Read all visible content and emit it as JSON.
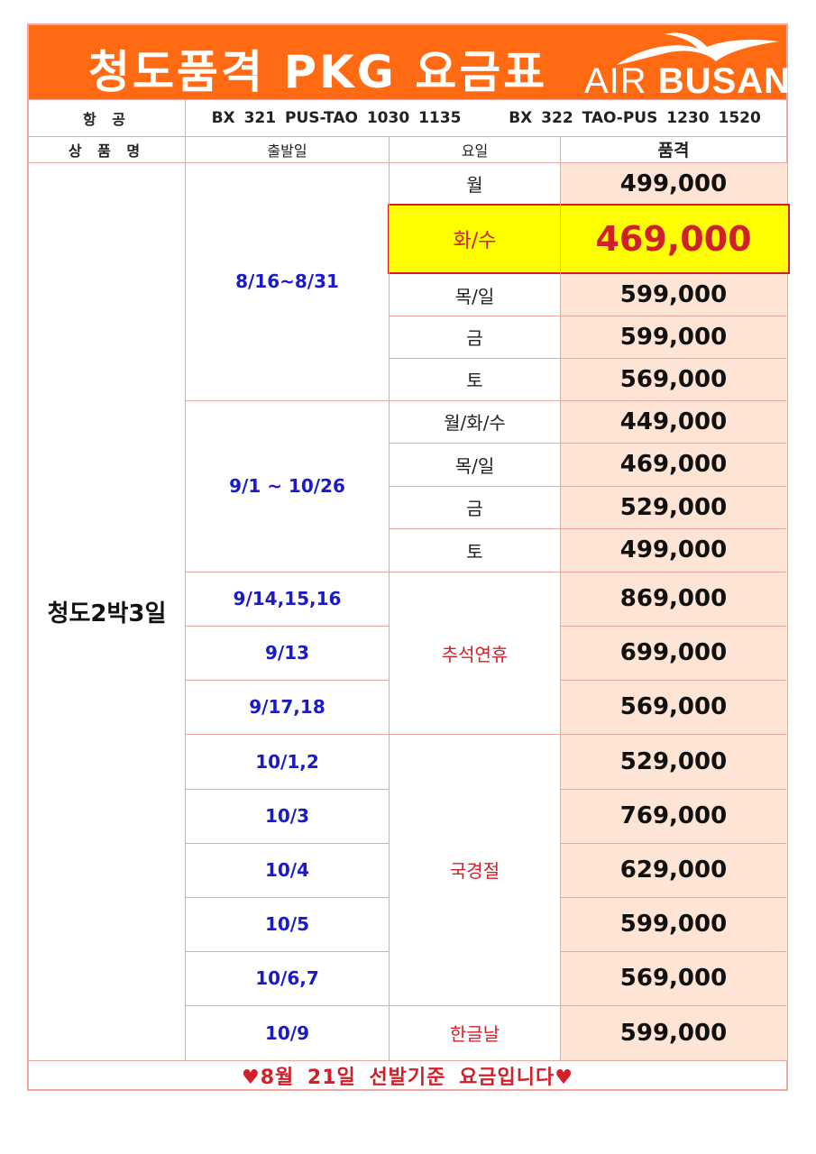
{
  "title": "청도품격 PKG 요금표",
  "logo": {
    "text_light": "AIR",
    "text_bold": "BUSAN"
  },
  "flight_row": {
    "label": "항 공",
    "outbound": "BX 321  PUS-TAO 1030 1135",
    "inbound": "BX 322  TAO-PUS  1230 1520"
  },
  "columns": {
    "product": "상 품 명",
    "departure": "출발일",
    "weekday": "요일",
    "price": "품격"
  },
  "product_name": "청도2박3일",
  "groups": [
    {
      "date": "8/16~8/31"
    },
    {
      "date": "9/1 ~ 10/26"
    }
  ],
  "weekday_rows": [
    {
      "day": "월",
      "price": "499,000"
    },
    {
      "day": "화/수",
      "price": "469,000"
    },
    {
      "day": "목/일",
      "price": "599,000"
    },
    {
      "day": "금",
      "price": "599,000"
    },
    {
      "day": "토",
      "price": "569,000"
    },
    {
      "day": "월/화/수",
      "price": "449,000"
    },
    {
      "day": "목/일",
      "price": "469,000"
    },
    {
      "day": "금",
      "price": "529,000"
    },
    {
      "day": "토",
      "price": "499,000"
    }
  ],
  "holiday_rows": [
    {
      "date": "9/14,15,16",
      "price": "869,000"
    },
    {
      "date": "9/13",
      "price": "699,000"
    },
    {
      "date": "9/17,18",
      "price": "569,000"
    },
    {
      "date": "10/1,2",
      "price": "529,000"
    },
    {
      "date": "10/3",
      "price": "769,000"
    },
    {
      "date": "10/4",
      "price": "629,000"
    },
    {
      "date": "10/5",
      "price": "599,000"
    },
    {
      "date": "10/6,7",
      "price": "569,000"
    },
    {
      "date": "10/9",
      "price": "599,000"
    }
  ],
  "holidays": {
    "chuseok": "추석연휴",
    "national_day": "국경절",
    "hangul_day": "한글날"
  },
  "footer": "♥8월 21일 선발기준 요금입니다♥",
  "colors": {
    "header_bg": "#ff6a12",
    "price_col_bg": "#fde4d4",
    "highlight_bg": "#ffff00",
    "date_blue": "#1a1ac8",
    "holiday_red": "#d0202a"
  }
}
